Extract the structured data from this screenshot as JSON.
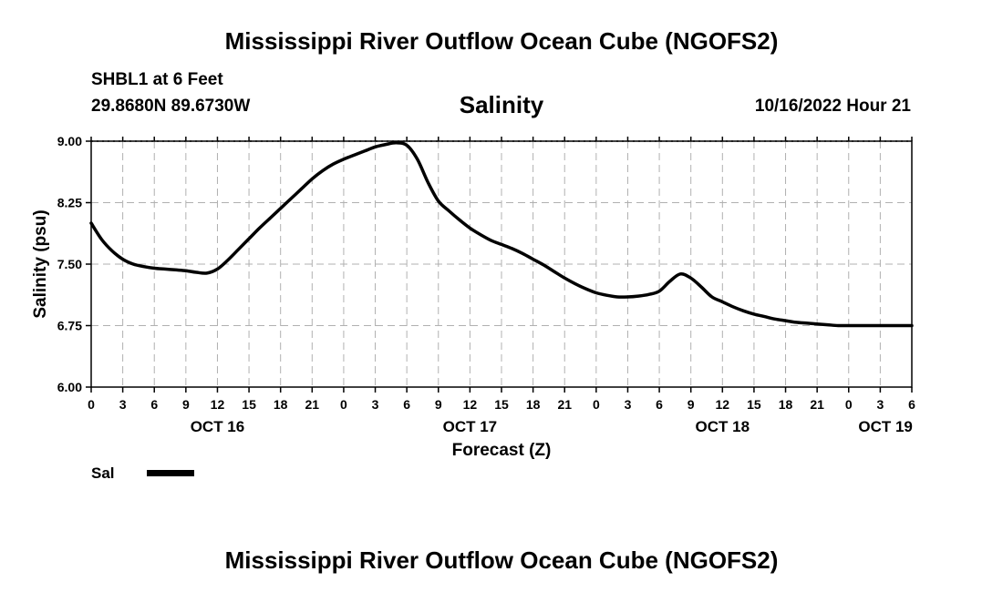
{
  "header": {
    "title": "Mississippi River Outflow Ocean Cube (NGOFS2)",
    "station": "SHBL1 at 6 Feet",
    "coords": "29.8680N  89.6730W",
    "subtitle": "Salinity",
    "timestamp": "10/16/2022 Hour 21"
  },
  "footer": {
    "title": "Mississippi River Outflow Ocean Cube (NGOFS2)"
  },
  "legend": {
    "label": "Sal"
  },
  "chart_data": {
    "type": "line",
    "title": "Salinity",
    "xlabel": "Forecast (Z)",
    "ylabel": "Salinity (psu)",
    "x_unit": "hours from OCT 16 00Z",
    "xlim": [
      0,
      78
    ],
    "ylim": [
      6.0,
      9.0
    ],
    "grid": true,
    "y_ticks": [
      6.0,
      6.75,
      7.5,
      8.25,
      9.0
    ],
    "y_tick_labels": [
      "6.00",
      "6.75",
      "7.50",
      "8.25",
      "9.00"
    ],
    "x_ticks": [
      0,
      3,
      6,
      9,
      12,
      15,
      18,
      21,
      24,
      27,
      30,
      33,
      36,
      39,
      42,
      45,
      48,
      51,
      54,
      57,
      60,
      63,
      66,
      69,
      72,
      75,
      78
    ],
    "x_tick_labels": [
      "0",
      "3",
      "6",
      "9",
      "12",
      "15",
      "18",
      "21",
      "0",
      "3",
      "6",
      "9",
      "12",
      "15",
      "18",
      "21",
      "0",
      "3",
      "6",
      "9",
      "12",
      "15",
      "18",
      "21",
      "0",
      "3",
      "6"
    ],
    "day_labels": [
      {
        "label": "OCT 16",
        "x": 12
      },
      {
        "label": "OCT 17",
        "x": 36
      },
      {
        "label": "OCT 18",
        "x": 60
      },
      {
        "label": "OCT 19",
        "x": 75.5
      }
    ],
    "series": [
      {
        "name": "Sal",
        "x": [
          0,
          1,
          2,
          3,
          4,
          5,
          6,
          7,
          8,
          9,
          10,
          11,
          12,
          13,
          14,
          15,
          16,
          17,
          18,
          19,
          20,
          21,
          22,
          23,
          24,
          25,
          26,
          27,
          28,
          29,
          30,
          31,
          32,
          33,
          34,
          35,
          36,
          37,
          38,
          39,
          40,
          41,
          42,
          43,
          44,
          45,
          46,
          47,
          48,
          49,
          50,
          51,
          52,
          53,
          54,
          55,
          56,
          57,
          58,
          59,
          60,
          61,
          62,
          63,
          64,
          65,
          66,
          67,
          68,
          69,
          70,
          71,
          72,
          73,
          74,
          75,
          76,
          77,
          78
        ],
        "values": [
          8.0,
          7.8,
          7.66,
          7.56,
          7.5,
          7.47,
          7.45,
          7.44,
          7.43,
          7.42,
          7.4,
          7.39,
          7.44,
          7.55,
          7.68,
          7.81,
          7.94,
          8.06,
          8.18,
          8.3,
          8.42,
          8.54,
          8.64,
          8.72,
          8.78,
          8.83,
          8.88,
          8.93,
          8.96,
          8.98,
          8.95,
          8.78,
          8.5,
          8.27,
          8.15,
          8.04,
          7.94,
          7.86,
          7.79,
          7.74,
          7.69,
          7.63,
          7.56,
          7.49,
          7.41,
          7.33,
          7.26,
          7.2,
          7.15,
          7.12,
          7.1,
          7.1,
          7.11,
          7.13,
          7.17,
          7.29,
          7.38,
          7.33,
          7.22,
          7.1,
          7.04,
          6.98,
          6.93,
          6.89,
          6.86,
          6.83,
          6.81,
          6.79,
          6.78,
          6.77,
          6.76,
          6.75,
          6.75,
          6.75,
          6.75,
          6.75,
          6.75,
          6.75,
          6.75
        ]
      }
    ]
  }
}
